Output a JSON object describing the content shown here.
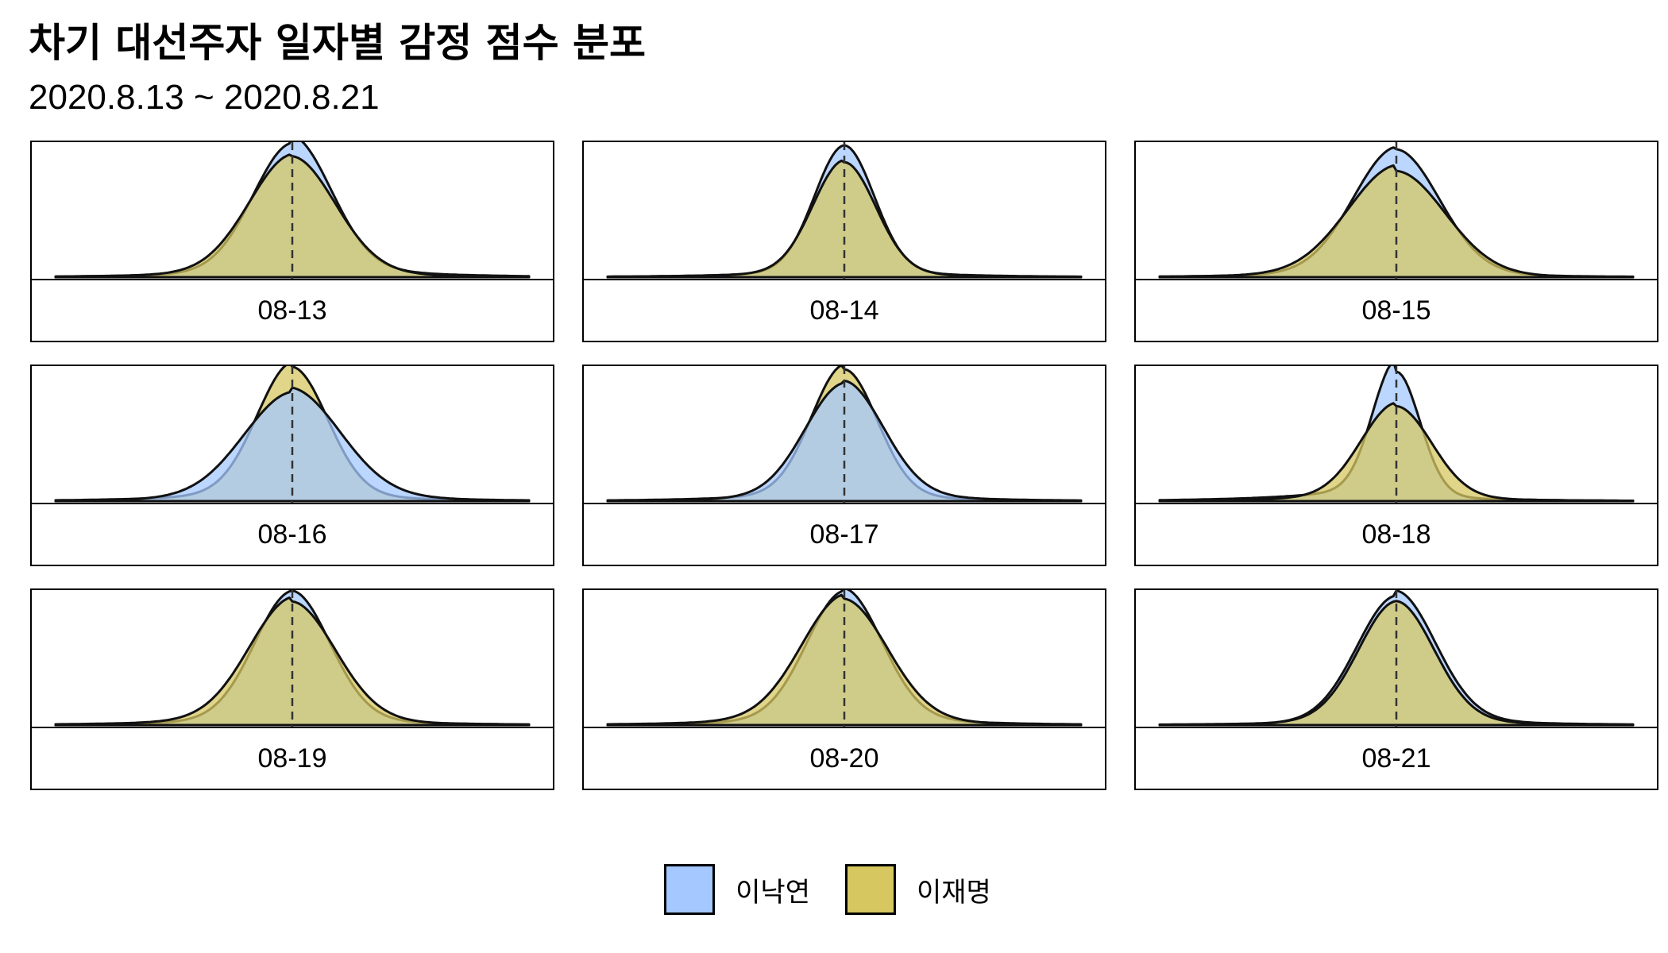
{
  "title": "차기 대선주자 일자별 감정 점수 분포",
  "subtitle": "2020.8.13 ~ 2020.8.21",
  "chart_data": {
    "type": "area",
    "description": "Faceted density curves of sentiment score per day, two candidates overlaid; dashed vertical reference line at score 0",
    "xlim": [
      -3,
      3
    ],
    "reference_line_x": 0,
    "grid": false,
    "legend_position": "bottom",
    "series": [
      {
        "name": "이낙연",
        "color": "#a4c8ff"
      },
      {
        "name": "이재명",
        "color": "#d6c761"
      }
    ],
    "panels": [
      {
        "label": "08-13",
        "peaks": {
          "이낙연": 1.0,
          "이재명": 0.9
        },
        "widths": {
          "이낙연": 0.5,
          "이재명": 0.55
        },
        "right_tail": {
          "이낙연": 0.16,
          "이재명": 0.1
        },
        "left_tail": {
          "이낙연": 0.1,
          "이재명": 0.12
        }
      },
      {
        "label": "08-14",
        "peaks": {
          "이낙연": 1.0,
          "이재명": 0.88
        },
        "widths": {
          "이낙연": 0.38,
          "이재명": 0.4
        },
        "right_tail": {
          "이낙연": 0.08,
          "이재명": 0.07
        },
        "left_tail": {
          "이낙연": 0.08,
          "이재명": 0.09
        }
      },
      {
        "label": "08-15",
        "peaks": {
          "이낙연": 0.97,
          "이재명": 0.82
        },
        "widths": {
          "이낙연": 0.55,
          "이재명": 0.62
        },
        "right_tail": {
          "이낙연": 0.08,
          "이재명": 0.06
        },
        "left_tail": {
          "이낙연": 0.1,
          "이재명": 0.12
        }
      },
      {
        "label": "08-16",
        "peaks": {
          "이낙연": 0.8,
          "이재명": 1.0
        },
        "widths": {
          "이낙연": 0.62,
          "이재명": 0.45
        },
        "right_tail": {
          "이낙연": 0.16,
          "이재명": 0.1
        },
        "left_tail": {
          "이낙연": 0.12,
          "이재명": 0.14
        }
      },
      {
        "label": "08-17",
        "peaks": {
          "이낙연": 0.88,
          "이재명": 1.0
        },
        "widths": {
          "이낙연": 0.5,
          "이재명": 0.42
        },
        "right_tail": {
          "이낙연": 0.12,
          "이재명": 0.08
        },
        "left_tail": {
          "이낙연": 0.1,
          "이재명": 0.12
        }
      },
      {
        "label": "08-18",
        "peaks": {
          "이낙연": 1.0,
          "이재명": 0.72
        },
        "widths": {
          "이낙연": 0.3,
          "이재명": 0.45
        },
        "right_tail": {
          "이낙연": 0.06,
          "이재명": 0.08
        },
        "left_tail": {
          "이낙연": 0.16,
          "이재명": 0.12
        }
      },
      {
        "label": "08-19",
        "peaks": {
          "이낙연": 1.0,
          "이재명": 0.92
        },
        "widths": {
          "이낙연": 0.48,
          "이재명": 0.55
        },
        "right_tail": {
          "이낙연": 0.1,
          "이재명": 0.1
        },
        "left_tail": {
          "이낙연": 0.1,
          "이재명": 0.14
        }
      },
      {
        "label": "08-20",
        "peaks": {
          "이낙연": 1.0,
          "이재명": 0.94
        },
        "widths": {
          "이낙연": 0.48,
          "이재명": 0.55
        },
        "right_tail": {
          "이낙연": 0.12,
          "이재명": 0.1
        },
        "left_tail": {
          "이낙연": 0.1,
          "이재명": 0.14
        }
      },
      {
        "label": "08-21",
        "peaks": {
          "이낙연": 1.0,
          "이재명": 0.94
        },
        "widths": {
          "이낙연": 0.5,
          "이재명": 0.48
        },
        "right_tail": {
          "이낙연": 0.1,
          "이재명": 0.08
        },
        "left_tail": {
          "이낙연": 0.06,
          "이재명": 0.08
        }
      }
    ]
  },
  "legend": {
    "items": [
      {
        "label": "이낙연",
        "color": "#a4c8ff"
      },
      {
        "label": "이재명",
        "color": "#d6c761"
      }
    ]
  }
}
